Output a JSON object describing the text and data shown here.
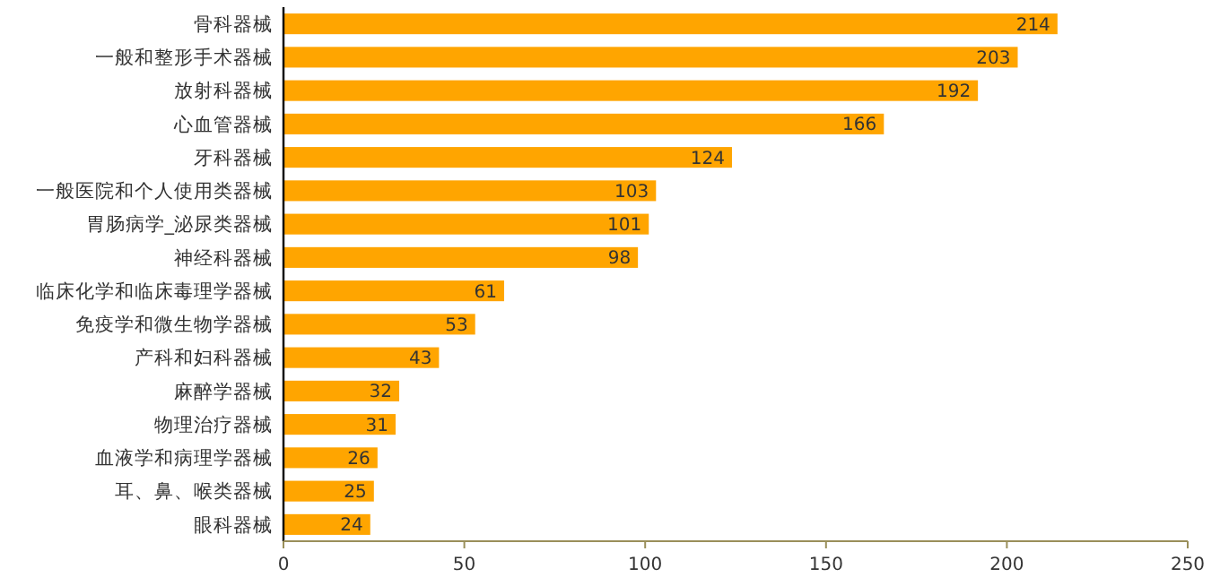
{
  "chart_data": {
    "type": "bar",
    "orientation": "horizontal",
    "categories": [
      "骨科器械",
      "一般和整形手术器械",
      "放射科器械",
      "心血管器械",
      "牙科器械",
      "一般医院和个人使用类器械",
      "胃肠病学_泌尿类器械",
      "神经科器械",
      "临床化学和临床毒理学器械",
      "免疫学和微生物学器械",
      "产科和妇科器械",
      "麻醉学器械",
      "物理治疗器械",
      "血液学和病理学器械",
      "耳、鼻、喉类器械",
      "眼科器械"
    ],
    "values": [
      214,
      203,
      192,
      166,
      124,
      103,
      101,
      98,
      61,
      53,
      43,
      32,
      31,
      26,
      25,
      24
    ],
    "color": "#ffa500",
    "xlim": [
      0,
      250
    ],
    "xticks": [
      0,
      50,
      100,
      150,
      200,
      250
    ],
    "data_labels": true,
    "grid": false
  }
}
